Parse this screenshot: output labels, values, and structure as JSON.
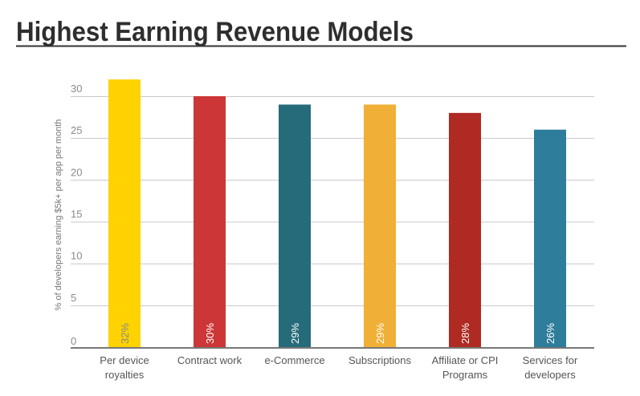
{
  "chart_data": {
    "type": "bar",
    "title": "Highest Earning Revenue Models",
    "xlabel": "",
    "ylabel": "% of developers earning $5k+ per app per month",
    "ylim": [
      0,
      30
    ],
    "yticks": [
      "0",
      "5",
      "10",
      "15",
      "20",
      "25",
      "30"
    ],
    "grid": true,
    "categories": [
      [
        "Per device",
        "royalties"
      ],
      [
        "Contract work"
      ],
      [
        "e-Commerce"
      ],
      [
        "Subscriptions"
      ],
      [
        "Affiliate or CPI",
        "Programs"
      ],
      [
        "Services for",
        "developers"
      ]
    ],
    "values": [
      32,
      30,
      29,
      29,
      28,
      26
    ],
    "data_labels": [
      "32%",
      "30%",
      "29%",
      "29%",
      "28%",
      "26%"
    ],
    "colors": [
      "#FFD200",
      "#CC3636",
      "#266B7A",
      "#F0AF36",
      "#AE2A22",
      "#2E7D9A"
    ],
    "label_colors": [
      "#8a8a8a",
      "#ffffff",
      "#ffffff",
      "#ffffff",
      "#ffffff",
      "#ffffff"
    ]
  }
}
